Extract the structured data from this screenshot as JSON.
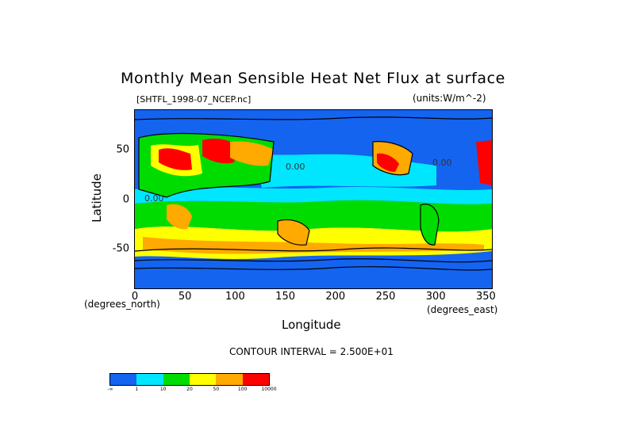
{
  "title": "Monthly Mean Sensible Heat Net Flux at surface",
  "file_label": "[SHTFL_1998-07_NCEP.nc]",
  "units_label": "(units:W/m^-2)",
  "x_ticks": [
    "0",
    "50",
    "100",
    "150",
    "200",
    "250",
    "300",
    "350"
  ],
  "x_tick_values": [
    0,
    50,
    100,
    150,
    200,
    250,
    300,
    350
  ],
  "y_ticks": [
    "50",
    "0",
    "-50"
  ],
  "y_tick_values": [
    50,
    0,
    -50
  ],
  "x_unit_left": "(degrees_north)",
  "x_unit_right": "(degrees_east)",
  "xlabel": "Longitude",
  "ylabel": "Latitude",
  "contour_interval": "CONTOUR INTERVAL = 2.500E+01",
  "map_labels": [
    "0.00",
    "0.00",
    "0.00"
  ],
  "colorbar": {
    "colors": [
      "#1464f0",
      "#00e6ff",
      "#00dc00",
      "#ffff00",
      "#ffaa00",
      "#ff0000"
    ],
    "labels": [
      "-∞",
      "1",
      "10",
      "20",
      "50",
      "100",
      "10000"
    ]
  }
}
